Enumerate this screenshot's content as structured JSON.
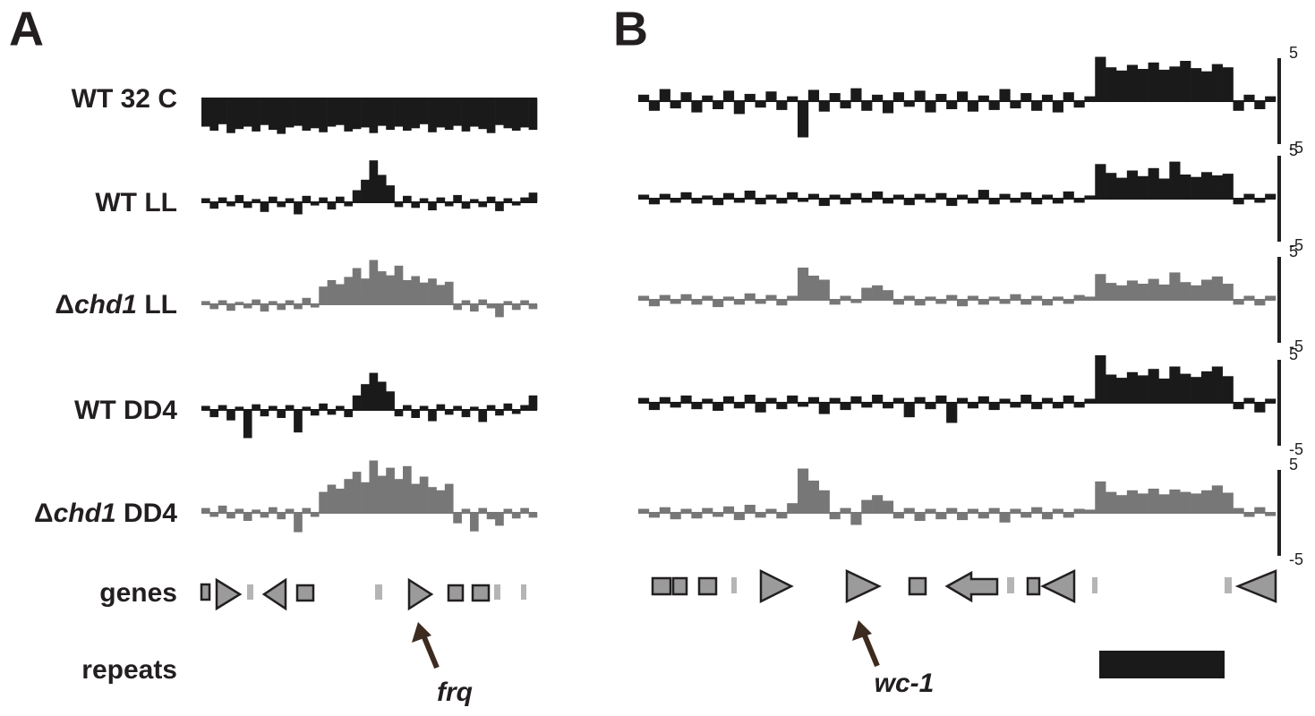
{
  "panels": [
    {
      "letter": "A",
      "tracks": [
        {
          "label": "WT 32 C",
          "color": "#1a1a1a",
          "values": [
            -3.5,
            -4,
            -3.2,
            -4.3,
            -3.8,
            -3.5,
            -4.1,
            -3.3,
            -3.9,
            -4.4,
            -3.6,
            -3.4,
            -4,
            -3.7,
            -4.2,
            -3.5,
            -3.3,
            -4.1,
            -3.8,
            -3.6,
            -4.3,
            -3.4,
            -3.9,
            -3.5,
            -4,
            -3.7,
            -3.2,
            -4.2,
            -3.6,
            -3.9,
            -3.4,
            -4.1,
            -3.5,
            -3.8,
            -4.3,
            -3.3,
            -3.7,
            -4,
            -3.6,
            -3.9
          ]
        },
        {
          "label": "WT LL",
          "color": "#1a1a1a",
          "values": [
            0.5,
            -0.8,
            0.6,
            -0.5,
            0.9,
            -0.7,
            0.4,
            -1.2,
            0.7,
            -0.6,
            0.5,
            -1.5,
            0.8,
            -0.4,
            0.6,
            -0.9,
            0.7,
            -0.5,
            1.5,
            2.8,
            5.2,
            3.4,
            2.1,
            -0.6,
            0.8,
            -0.7,
            0.5,
            -1,
            0.6,
            -0.5,
            0.9,
            -0.8,
            0.4,
            -0.6,
            0.7,
            -1.1,
            0.5,
            -0.4,
            0.6,
            1.2
          ]
        },
        {
          "label_parts": [
            "Δ",
            "chd1",
            " LL"
          ],
          "color": "#777777",
          "values": [
            0.4,
            -0.6,
            0.5,
            -0.8,
            0.3,
            -0.5,
            0.6,
            -0.9,
            0.4,
            -0.7,
            0.5,
            -0.6,
            0.8,
            -0.4,
            2.2,
            3,
            2.5,
            3.4,
            4.5,
            3.2,
            5.5,
            4.1,
            3.6,
            4.8,
            3,
            3.5,
            2.7,
            3.2,
            2.4,
            2.8,
            -0.7,
            0.5,
            -0.9,
            0.6,
            -0.5,
            -1.6,
            0.4,
            -0.7,
            0.5,
            -0.6
          ]
        },
        {
          "label": "WT DD4",
          "color": "#1a1a1a",
          "values": [
            0.5,
            -0.9,
            0.6,
            -1.3,
            0.4,
            -3.5,
            0.7,
            -0.8,
            0.5,
            -1,
            0.6,
            -2.8,
            0.4,
            -0.7,
            0.8,
            -0.6,
            0.5,
            -0.9,
            1.8,
            3.2,
            4.6,
            3.5,
            2.3,
            -0.8,
            0.6,
            -1,
            0.5,
            -1.4,
            0.7,
            -0.6,
            0.5,
            -0.9,
            0.4,
            -1.5,
            0.6,
            -0.7,
            0.8,
            -0.5,
            0.6,
            1.8
          ]
        },
        {
          "label_parts": [
            "Δ",
            "chd1",
            " DD4"
          ],
          "color": "#777777",
          "values": [
            0.6,
            -0.5,
            0.9,
            -0.7,
            0.5,
            -1,
            0.4,
            -0.6,
            0.7,
            -0.8,
            0.5,
            -2.4,
            0.6,
            -0.5,
            2.6,
            3.5,
            3,
            4.2,
            5.1,
            3.8,
            6.5,
            4.6,
            5.6,
            4.2,
            5.8,
            3.6,
            4.5,
            3.2,
            2.8,
            3.6,
            -1.3,
            0.5,
            -2.3,
            0.6,
            -0.8,
            -1.6,
            0.5,
            -0.7,
            0.6,
            -0.6
          ]
        }
      ],
      "genes_label": "genes",
      "repeats_label": "repeats",
      "arrow_label": "frq"
    },
    {
      "letter": "B",
      "ylim": [
        -5,
        5
      ],
      "yticks": [
        5,
        -5
      ],
      "tracks": [
        {
          "color": "#1a1a1a",
          "values": [
            0.8,
            -1.2,
            1.5,
            -0.9,
            1.1,
            -1.4,
            0.7,
            -1,
            1.3,
            -1.6,
            0.9,
            -0.8,
            1.2,
            -1.1,
            0.6,
            -4.5,
            1.4,
            -1.3,
            1,
            -0.9,
            1.6,
            -1.2,
            0.8,
            -1.5,
            1.1,
            -0.7,
            1.3,
            -1.4,
            0.9,
            -1,
            1.2,
            -1.3,
            0.7,
            -1.1,
            1.5,
            -0.9,
            1,
            -1.2,
            0.8,
            -1.4,
            1.1,
            -0.8,
            0.6,
            5.5,
            4.2,
            3.8,
            4.5,
            4,
            4.8,
            3.9,
            4.3,
            5,
            4.1,
            3.7,
            4.6,
            4.2,
            -1.2,
            0.8,
            -1,
            0.6
          ]
        },
        {
          "color": "#1a1a1a",
          "values": [
            0.5,
            -0.7,
            0.6,
            -0.5,
            0.8,
            -0.6,
            0.4,
            -0.8,
            0.7,
            -0.5,
            1,
            -0.7,
            0.5,
            -0.6,
            0.8,
            -0.4,
            0.6,
            -0.9,
            0.5,
            -0.7,
            0.7,
            -0.5,
            0.9,
            -0.6,
            0.5,
            -0.8,
            0.6,
            -0.5,
            0.7,
            -0.9,
            0.5,
            -0.6,
            1.1,
            -0.7,
            0.6,
            -0.5,
            0.8,
            -0.7,
            0.5,
            -0.6,
            0.9,
            -0.5,
            0.4,
            4.3,
            3.2,
            2.6,
            3.5,
            2.8,
            3.8,
            2.5,
            4.6,
            3,
            2.7,
            3.3,
            2.9,
            3.1,
            -0.7,
            0.6,
            -0.5,
            0.6
          ]
        },
        {
          "color": "#777777",
          "values": [
            0.5,
            -0.8,
            0.6,
            -0.5,
            0.7,
            -0.6,
            0.5,
            -0.9,
            0.4,
            -0.6,
            0.8,
            -0.5,
            0.6,
            -0.7,
            0.5,
            4,
            3,
            2.5,
            -0.6,
            0.5,
            -0.4,
            1.5,
            1.8,
            1.2,
            -0.6,
            0.5,
            -0.7,
            0.4,
            -0.5,
            0.6,
            -0.8,
            0.5,
            -0.6,
            0.4,
            -0.5,
            0.7,
            -0.6,
            0.5,
            -0.7,
            0.4,
            -0.5,
            0.6,
            0.4,
            3.2,
            2.1,
            1.8,
            2.4,
            2,
            2.6,
            1.9,
            3.4,
            2.2,
            1.8,
            2.5,
            2.9,
            2,
            -0.6,
            0.5,
            -0.7,
            0.5
          ]
        },
        {
          "color": "#1a1a1a",
          "values": [
            0.6,
            -0.9,
            0.7,
            -0.6,
            0.9,
            -0.8,
            0.5,
            -1,
            0.8,
            -0.7,
            1,
            -1.2,
            0.6,
            -0.8,
            0.9,
            -0.5,
            0.7,
            -1.4,
            0.6,
            -0.9,
            0.8,
            -0.6,
            1,
            -0.7,
            0.6,
            -1.8,
            0.7,
            -0.8,
            0.9,
            -2.5,
            0.6,
            -0.7,
            0.8,
            -0.9,
            0.5,
            -0.6,
            1,
            -0.8,
            0.6,
            -0.7,
            0.9,
            -0.6,
            0.5,
            5.9,
            3.5,
            3.1,
            3.8,
            3.4,
            4.2,
            3,
            4.5,
            3.6,
            3.2,
            3.9,
            4.5,
            3.3,
            -0.8,
            0.6,
            -1.2,
            0.5
          ]
        },
        {
          "color": "#777777",
          "values": [
            0.5,
            -0.6,
            0.7,
            -0.8,
            0.5,
            -0.7,
            0.6,
            -0.5,
            0.8,
            -0.9,
            1,
            -0.6,
            0.5,
            -0.7,
            1.2,
            5.5,
            4,
            2.8,
            -0.8,
            0.6,
            -1.5,
            1.6,
            2.2,
            1.5,
            -0.7,
            0.6,
            -1,
            0.5,
            -0.8,
            0.6,
            -0.9,
            0.5,
            -0.7,
            0.6,
            -1.2,
            0.5,
            -0.6,
            0.7,
            -0.8,
            0.5,
            -0.6,
            0.5,
            0.4,
            3.9,
            2.6,
            2.2,
            2.8,
            2.4,
            3,
            2.3,
            2.9,
            2.6,
            2.4,
            2.8,
            3.4,
            2.5,
            0.6,
            -0.5,
            0.7,
            -0.4
          ]
        }
      ],
      "arrow_label": "wc-1"
    }
  ]
}
